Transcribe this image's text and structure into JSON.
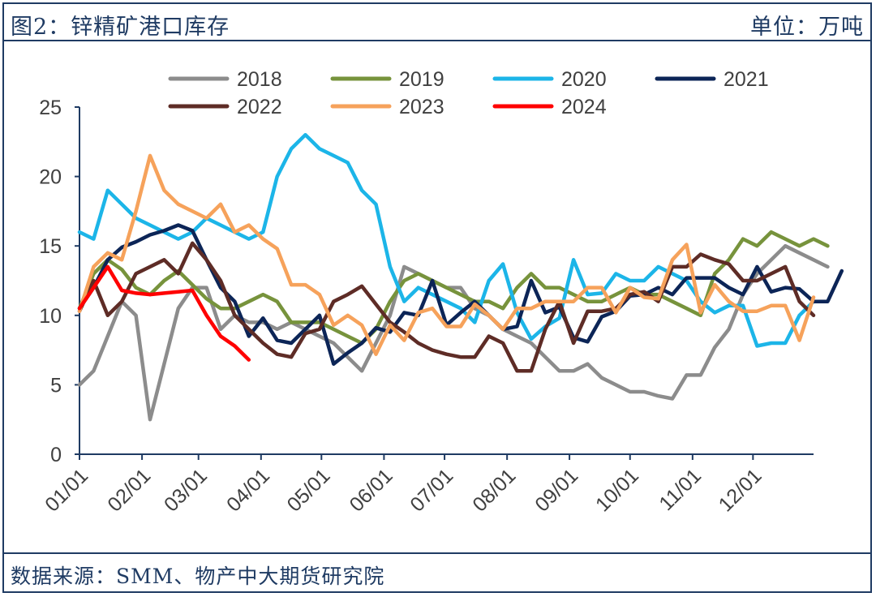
{
  "figure": {
    "title": "图2：锌精矿港口库存",
    "unit": "单位：万吨",
    "source": "数据来源：SMM、物产中大期货研究院"
  },
  "colors": {
    "frame": "#1f3b63",
    "axis": "#1f3b63",
    "text": "#404040"
  },
  "chart_data": {
    "type": "line",
    "title": "锌精矿港口库存",
    "xlabel": "",
    "ylabel": "万吨",
    "ylim": [
      0,
      25
    ],
    "yticks": [
      0,
      5,
      10,
      15,
      20,
      25
    ],
    "x_range_weeks": [
      0,
      52
    ],
    "x_ticks": [
      {
        "week": 0,
        "label": "01/01"
      },
      {
        "week": 4.43,
        "label": "02/01"
      },
      {
        "week": 8.43,
        "label": "03/01"
      },
      {
        "week": 12.86,
        "label": "04/01"
      },
      {
        "week": 17.14,
        "label": "05/01"
      },
      {
        "week": 21.57,
        "label": "06/01"
      },
      {
        "week": 25.86,
        "label": "07/01"
      },
      {
        "week": 30.29,
        "label": "08/01"
      },
      {
        "week": 34.71,
        "label": "09/01"
      },
      {
        "week": 39.0,
        "label": "10/01"
      },
      {
        "week": 43.43,
        "label": "11/01"
      },
      {
        "week": 47.71,
        "label": "12/01"
      }
    ],
    "legend_position": "top",
    "grid": false,
    "series": [
      {
        "name": "2018",
        "color": "#8c8c8c",
        "values": [
          5,
          6,
          8.5,
          11,
          10,
          2.5,
          6.5,
          10.5,
          12,
          12,
          9,
          10,
          9.5,
          9.5,
          9,
          9.5,
          9,
          8.5,
          8,
          7,
          6,
          8,
          10,
          13.5,
          13,
          12.5,
          12,
          12,
          10.5,
          10,
          9,
          8.5,
          8,
          7,
          6,
          6,
          6.5,
          5.5,
          5,
          4.5,
          4.5,
          4.2,
          4,
          5.7,
          5.7,
          7.7,
          9,
          11.5,
          13,
          14,
          15,
          14.5,
          14,
          13.5
        ]
      },
      {
        "name": "2019",
        "color": "#77933c",
        "values": [
          10.5,
          13,
          14,
          13.3,
          12,
          11.5,
          12.5,
          13.2,
          12.2,
          11.2,
          10.5,
          10.5,
          11,
          11.5,
          11,
          9.5,
          9.5,
          9.5,
          9,
          8.5,
          8,
          9,
          11,
          12.5,
          13,
          12.5,
          12,
          11.5,
          11,
          11,
          10.5,
          12,
          13,
          12,
          12,
          11.5,
          11,
          11,
          11.5,
          12,
          11.5,
          11.5,
          11,
          10.5,
          10,
          13,
          14,
          15.5,
          15,
          16,
          15.5,
          15,
          15.5,
          15
        ]
      },
      {
        "name": "2020",
        "color": "#1cb5e8",
        "values": [
          16,
          15.5,
          19,
          18,
          17,
          16.5,
          16,
          15.5,
          16,
          17,
          16.5,
          16,
          15.5,
          16,
          20,
          22,
          23,
          22,
          21.5,
          21,
          19,
          18,
          13.5,
          11,
          12,
          11.5,
          11,
          10.5,
          9.5,
          12.5,
          13.7,
          10.2,
          8.3,
          9.2,
          9.8,
          14,
          11.5,
          11.6,
          13,
          12.5,
          12.5,
          13.5,
          13,
          12.5,
          11,
          10.2,
          10.7,
          10.7,
          7.8,
          8,
          8,
          10,
          11
        ]
      },
      {
        "name": "2021",
        "color": "#0c2557",
        "values": [
          10.5,
          12,
          14,
          14.9,
          15.3,
          15.8,
          16.1,
          16.5,
          16.1,
          14,
          12,
          11,
          8.5,
          9.8,
          8.2,
          8,
          9,
          10,
          6.5,
          7.3,
          8,
          9.1,
          8.8,
          10.2,
          10,
          12.5,
          9.3,
          10.2,
          11,
          10,
          9,
          9.2,
          12.5,
          10.2,
          10.6,
          8.4,
          8.1,
          9.9,
          10.3,
          11.4,
          11.5,
          12,
          11.5,
          12.7,
          12.7,
          12.7,
          12,
          11.5,
          13.5,
          11.7,
          12,
          11.9,
          11,
          11,
          13.2
        ]
      },
      {
        "name": "2022",
        "color": "#5e2c26",
        "values": [
          10.3,
          12.5,
          10,
          11,
          13,
          13.5,
          14,
          13,
          15.2,
          14,
          12.5,
          10,
          9,
          8,
          7.2,
          7,
          8.7,
          9,
          11,
          11.5,
          12.1,
          10.8,
          9.5,
          8.8,
          8,
          7.5,
          7.2,
          7,
          7,
          8.5,
          8,
          6,
          6,
          9,
          11,
          8,
          10.3,
          10.3,
          10.5,
          11.5,
          11.7,
          11,
          13.5,
          13.5,
          14.4,
          14,
          13.7,
          12.5,
          12.5,
          13,
          13.5,
          11,
          10
        ]
      },
      {
        "name": "2023",
        "color": "#f6a25b",
        "values": [
          10.3,
          13.5,
          14.5,
          14,
          17.5,
          21.5,
          19,
          18,
          17.5,
          17,
          18,
          16,
          16.5,
          15.5,
          14.8,
          12.2,
          12.2,
          11.5,
          9.3,
          10,
          9.3,
          7.2,
          9.3,
          8.2,
          10.2,
          10.5,
          9.2,
          9.2,
          10.8,
          10,
          9,
          10.5,
          10.5,
          11,
          11,
          11,
          12,
          12,
          10.2,
          12,
          11.3,
          11.2,
          14,
          15.1,
          10.2,
          12.2,
          11,
          10.3,
          10.3,
          10.7,
          10.7,
          8.2,
          11.3
        ]
      },
      {
        "name": "2024",
        "color": "#ff0000",
        "values": [
          10.5,
          12,
          13.5,
          11.8,
          11.6,
          11.5,
          11.6,
          11.7,
          11.8,
          10,
          8.5,
          7.8,
          6.8
        ]
      }
    ]
  }
}
